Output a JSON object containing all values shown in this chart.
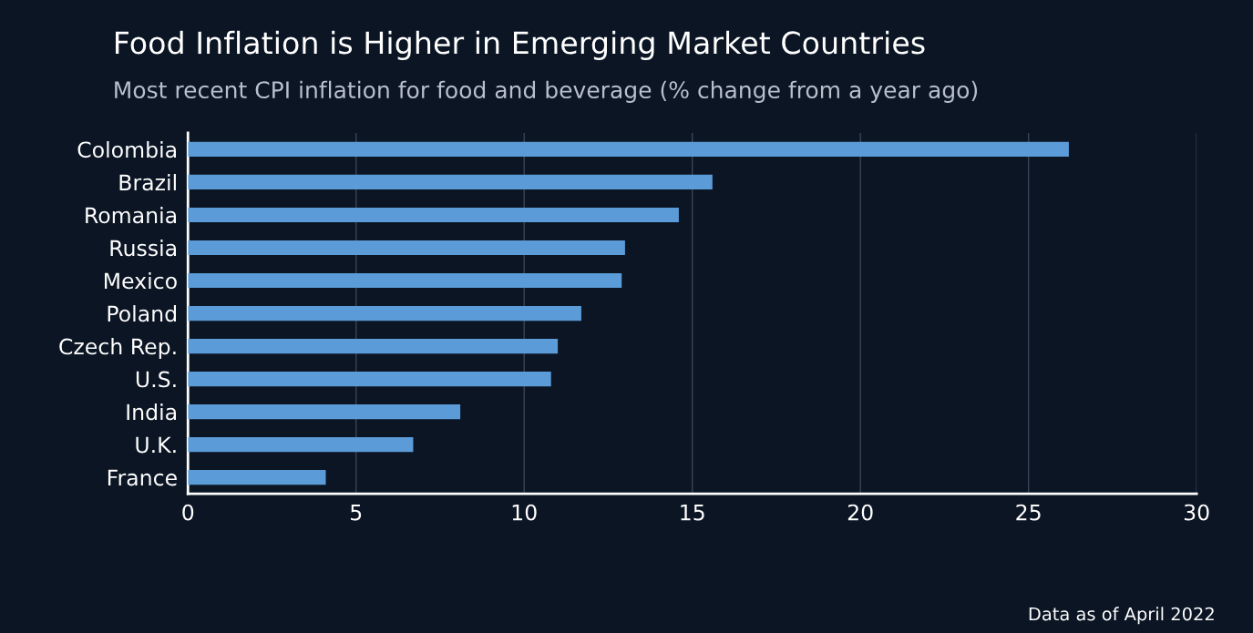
{
  "chart_data": {
    "type": "bar",
    "orientation": "horizontal",
    "title": "Food Inflation is Higher in Emerging Market Countries",
    "subtitle": "Most recent CPI inflation for food and beverage (% change from a year ago)",
    "categories": [
      "Colombia",
      "Brazil",
      "Romania",
      "Russia",
      "Mexico",
      "Poland",
      "Czech Rep.",
      "U.S.",
      "India",
      "U.K.",
      "France"
    ],
    "values": [
      26.2,
      15.6,
      14.6,
      13.0,
      12.9,
      11.7,
      11.0,
      10.8,
      8.1,
      6.7,
      4.1
    ],
    "color": "#5b9bd8",
    "xlim": [
      0,
      30
    ],
    "xticks": [
      0,
      5,
      10,
      15,
      20,
      25,
      30
    ],
    "grid": "x",
    "annotations": [
      "Data as of April 2022"
    ]
  }
}
